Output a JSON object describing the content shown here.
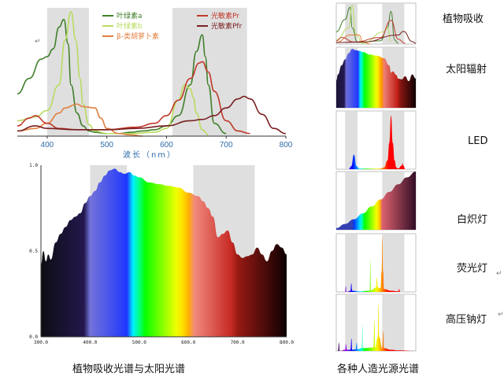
{
  "captions": {
    "left": "植物吸收光谱与太阳光谱",
    "right": "各种人造光源光谱"
  },
  "side_labels": [
    "植物吸收",
    "太阳辐射",
    "LED",
    "白炽灯",
    "荧光灯",
    "高压钠灯"
  ],
  "paragraph_mark": "↵",
  "colors": {
    "chl_a": "#3f7f2a",
    "chl_b": "#b8dc5e",
    "beta_carotene": "#e27f3f",
    "pr": "#c0392b",
    "pfr": "#7a1f1f",
    "band": "#d9d9d9",
    "axis_label": "#2e6ca8"
  },
  "chart_data": [
    {
      "id": "plant_absorption",
      "type": "line",
      "xlabel": "波长（nm）",
      "xticks": [
        400,
        500,
        600,
        700,
        800
      ],
      "xlim": [
        350,
        800
      ],
      "ylim": [
        0,
        1
      ],
      "grid": false,
      "legend_position": "top",
      "highlight_bands": [
        [
          400,
          470
        ],
        [
          610,
          735
        ]
      ],
      "series": [
        {
          "name": "叶绿素a",
          "color_key": "chl_a",
          "x": [
            350,
            370,
            390,
            400,
            410,
            420,
            428,
            435,
            440,
            450,
            460,
            470,
            480,
            500,
            520,
            540,
            560,
            580,
            600,
            620,
            640,
            650,
            660,
            665,
            670,
            680,
            700
          ],
          "y": [
            0.33,
            0.45,
            0.6,
            0.62,
            0.68,
            0.85,
            0.91,
            0.72,
            0.4,
            0.18,
            0.08,
            0.04,
            0.03,
            0.02,
            0.02,
            0.03,
            0.04,
            0.05,
            0.08,
            0.16,
            0.4,
            0.66,
            0.79,
            0.62,
            0.4,
            0.1,
            0.02
          ]
        },
        {
          "name": "叶绿素b",
          "color_key": "chl_b",
          "x": [
            350,
            380,
            400,
            420,
            430,
            440,
            448,
            455,
            460,
            470,
            480,
            500,
            540,
            580,
            600,
            620,
            630,
            640,
            645,
            650,
            660,
            670
          ],
          "y": [
            0.12,
            0.15,
            0.2,
            0.4,
            0.75,
            0.97,
            0.75,
            0.45,
            0.25,
            0.09,
            0.04,
            0.02,
            0.02,
            0.03,
            0.06,
            0.28,
            0.4,
            0.37,
            0.3,
            0.18,
            0.05,
            0.01
          ]
        },
        {
          "name": "β-类胡萝卜素",
          "color_key": "beta_carotene",
          "x": [
            350,
            380,
            400,
            420,
            430,
            450,
            460,
            480,
            490,
            500,
            520,
            540,
            560
          ],
          "y": [
            0.04,
            0.06,
            0.1,
            0.18,
            0.22,
            0.25,
            0.23,
            0.22,
            0.14,
            0.06,
            0.02,
            0.01,
            0.0
          ]
        },
        {
          "name": "光敏素Pr",
          "color_key": "pr",
          "x": [
            350,
            370,
            380,
            400,
            420,
            450,
            500,
            550,
            580,
            600,
            620,
            640,
            655,
            660,
            670,
            680,
            700,
            720,
            740
          ],
          "y": [
            0.08,
            0.14,
            0.16,
            0.1,
            0.06,
            0.05,
            0.05,
            0.07,
            0.1,
            0.16,
            0.28,
            0.45,
            0.57,
            0.58,
            0.5,
            0.35,
            0.12,
            0.04,
            0.02
          ]
        },
        {
          "name": "光敏素Pfr",
          "color_key": "pfr",
          "x": [
            350,
            380,
            400,
            450,
            500,
            550,
            600,
            640,
            660,
            680,
            700,
            720,
            730,
            740,
            760,
            780,
            800
          ],
          "y": [
            0.04,
            0.08,
            0.06,
            0.05,
            0.05,
            0.06,
            0.08,
            0.12,
            0.13,
            0.16,
            0.22,
            0.29,
            0.31,
            0.29,
            0.17,
            0.06,
            0.02
          ]
        }
      ]
    },
    {
      "id": "solar_spectrum",
      "type": "area",
      "xlim": [
        300,
        800
      ],
      "ylim": [
        0,
        1.0
      ],
      "xtick_labels": [
        "300.0",
        "400.0",
        "500.0",
        "600.0",
        "700.0",
        "800.0"
      ],
      "ytick_labels": [
        "0.0",
        "0.5",
        "1.0"
      ],
      "highlight_bands": [
        [
          400,
          475
        ],
        [
          610,
          735
        ]
      ],
      "x": [
        300,
        305,
        310,
        315,
        320,
        330,
        340,
        350,
        360,
        370,
        380,
        390,
        400,
        410,
        420,
        430,
        440,
        450,
        460,
        470,
        480,
        490,
        500,
        520,
        540,
        560,
        580,
        600,
        620,
        630,
        640,
        650,
        660,
        670,
        680,
        690,
        700,
        710,
        720,
        730,
        740,
        750,
        760,
        770,
        780,
        790,
        800
      ],
      "y": [
        0.42,
        0.5,
        0.44,
        0.48,
        0.45,
        0.55,
        0.6,
        0.64,
        0.68,
        0.7,
        0.72,
        0.78,
        0.82,
        0.85,
        0.9,
        0.94,
        0.97,
        0.98,
        0.96,
        0.95,
        0.96,
        0.94,
        0.93,
        0.9,
        0.89,
        0.88,
        0.87,
        0.84,
        0.82,
        0.79,
        0.75,
        0.7,
        0.58,
        0.6,
        0.62,
        0.55,
        0.48,
        0.46,
        0.47,
        0.48,
        0.52,
        0.48,
        0.44,
        0.5,
        0.54,
        0.52,
        0.48
      ]
    },
    {
      "id": "mini_plant",
      "type": "line",
      "xlim": [
        350,
        800
      ],
      "highlight_bands": [
        [
          400,
          470
        ],
        [
          610,
          735
        ]
      ],
      "series": [
        {
          "color_key": "chl_a",
          "x": [
            350,
            400,
            428,
            440,
            470,
            600,
            640,
            660,
            680,
            700
          ],
          "y": [
            0.3,
            0.6,
            0.9,
            0.4,
            0.04,
            0.08,
            0.4,
            0.8,
            0.1,
            0.02
          ]
        },
        {
          "color_key": "chl_b",
          "x": [
            350,
            420,
            440,
            460,
            500,
            620,
            640,
            660
          ],
          "y": [
            0.1,
            0.4,
            0.95,
            0.25,
            0.02,
            0.3,
            0.4,
            0.05
          ]
        },
        {
          "color_key": "beta_carotene",
          "x": [
            350,
            430,
            480,
            500,
            540
          ],
          "y": [
            0.04,
            0.22,
            0.22,
            0.06,
            0.0
          ]
        },
        {
          "color_key": "pr",
          "x": [
            350,
            380,
            450,
            600,
            660,
            700,
            740
          ],
          "y": [
            0.08,
            0.16,
            0.05,
            0.16,
            0.58,
            0.12,
            0.02
          ]
        },
        {
          "color_key": "pfr",
          "x": [
            350,
            500,
            700,
            730,
            780,
            800
          ],
          "y": [
            0.04,
            0.05,
            0.22,
            0.31,
            0.06,
            0.02
          ]
        }
      ]
    },
    {
      "id": "mini_sun",
      "type": "area",
      "xlim": [
        350,
        800
      ],
      "x": [
        350,
        360,
        380,
        400,
        420,
        440,
        460,
        480,
        500,
        540,
        580,
        620,
        650,
        660,
        670,
        690,
        700,
        720,
        740,
        760,
        780,
        800
      ],
      "y": [
        0.45,
        0.55,
        0.7,
        0.8,
        0.9,
        0.97,
        0.95,
        0.94,
        0.92,
        0.88,
        0.86,
        0.82,
        0.7,
        0.58,
        0.6,
        0.54,
        0.48,
        0.47,
        0.52,
        0.44,
        0.55,
        0.48
      ]
    },
    {
      "id": "mini_led",
      "type": "area",
      "xlim": [
        350,
        800
      ],
      "x": [
        350,
        420,
        435,
        450,
        465,
        480,
        560,
        600,
        620,
        640,
        650,
        660,
        670,
        680,
        690,
        700,
        720,
        725,
        730,
        740,
        800
      ],
      "y": [
        0.0,
        0.0,
        0.05,
        0.25,
        0.05,
        0.01,
        0.01,
        0.01,
        0.03,
        0.15,
        0.45,
        0.92,
        0.45,
        0.15,
        0.03,
        0.01,
        0.06,
        0.1,
        0.06,
        0.0,
        0.0
      ]
    },
    {
      "id": "mini_incandescent",
      "type": "area",
      "xlim": [
        350,
        800
      ],
      "x": [
        350,
        400,
        450,
        500,
        550,
        600,
        650,
        700,
        750,
        800
      ],
      "y": [
        0.03,
        0.1,
        0.18,
        0.28,
        0.4,
        0.52,
        0.65,
        0.78,
        0.9,
        1.0
      ]
    },
    {
      "id": "mini_fluorescent",
      "type": "area",
      "xlim": [
        350,
        800
      ],
      "x": [
        350,
        400,
        404,
        408,
        430,
        435,
        440,
        480,
        540,
        543,
        546,
        560,
        575,
        580,
        585,
        600,
        607,
        611,
        615,
        620,
        660,
        700,
        707,
        710,
        800
      ],
      "y": [
        0.0,
        0.0,
        0.1,
        0.0,
        0.02,
        0.15,
        0.02,
        0.01,
        0.02,
        0.55,
        0.02,
        0.05,
        0.08,
        0.25,
        0.08,
        0.06,
        0.35,
        0.95,
        0.35,
        0.05,
        0.02,
        0.01,
        0.05,
        0.0,
        0.0
      ]
    },
    {
      "id": "mini_sodium",
      "type": "area",
      "xlim": [
        350,
        800
      ],
      "x": [
        350,
        360,
        365,
        370,
        400,
        405,
        410,
        430,
        436,
        440,
        460,
        466,
        470,
        495,
        498,
        500,
        560,
        567,
        570,
        585,
        589,
        593,
        610,
        616,
        620,
        660,
        700,
        800
      ],
      "y": [
        0.0,
        0.0,
        0.15,
        0.0,
        0.02,
        0.12,
        0.02,
        0.02,
        0.22,
        0.02,
        0.03,
        0.15,
        0.03,
        0.05,
        0.45,
        0.05,
        0.06,
        0.55,
        0.06,
        0.25,
        0.85,
        0.25,
        0.05,
        0.35,
        0.05,
        0.02,
        0.01,
        0.0
      ]
    }
  ]
}
